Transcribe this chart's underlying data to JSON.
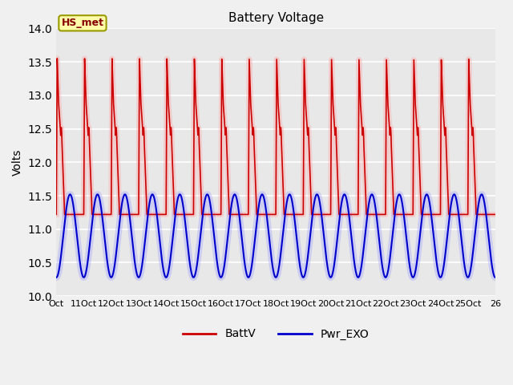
{
  "title": "Battery Voltage",
  "ylabel": "Volts",
  "ylim": [
    10.0,
    14.0
  ],
  "yticks": [
    10.0,
    10.5,
    11.0,
    11.5,
    12.0,
    12.5,
    13.0,
    13.5,
    14.0
  ],
  "total_days": 16,
  "legend_labels": [
    "BattV",
    "Pwr_EXO"
  ],
  "battv_color": "#cc0000",
  "pwr_color": "#0000cc",
  "annotation_text": "HS_met",
  "plot_bg_color": "#e8e8e8",
  "fig_bg_color": "#f0f0f0",
  "grid_color": "white",
  "period_days": 1.0,
  "batt_base": 11.22,
  "batt_peak": 13.55,
  "pwr_base": 10.28,
  "pwr_peak": 11.52,
  "figsize": [
    6.4,
    4.8
  ],
  "dpi": 100,
  "xtick_positions": [
    0,
    1,
    2,
    3,
    4,
    5,
    6,
    7,
    8,
    9,
    10,
    11,
    12,
    13,
    14,
    15,
    16
  ],
  "xtick_labels": [
    "Oct",
    "11Oct",
    "12Oct",
    "13Oct",
    "14Oct",
    "15Oct",
    "16Oct",
    "17Oct",
    "18Oct",
    "19Oct",
    "20Oct",
    "21Oct",
    "22Oct",
    "23Oct",
    "24Oct",
    "25Oct",
    "26"
  ]
}
